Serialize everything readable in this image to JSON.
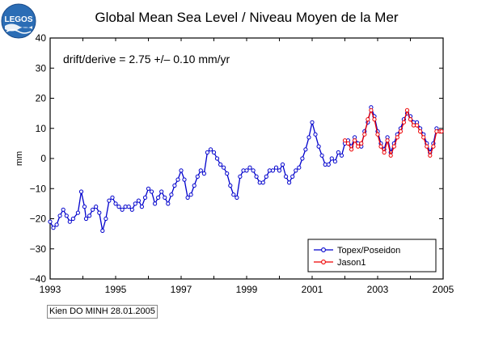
{
  "logo": {
    "text": "LEGOS"
  },
  "credit": "Kien DO MINH 28.01.2005",
  "chart_data": {
    "type": "line",
    "title": "Global Mean Sea Level / Niveau Moyen de la Mer",
    "annotation": "drift/derive = 2.75 +/– 0.10 mm/yr",
    "xlabel": "",
    "ylabel": "mm",
    "xlim": [
      1993,
      2005
    ],
    "ylim": [
      -40,
      40
    ],
    "x_ticks": [
      1993,
      1995,
      1997,
      1999,
      2001,
      2003,
      2005
    ],
    "y_ticks": [
      -40,
      -30,
      -20,
      -10,
      0,
      10,
      20,
      30,
      40
    ],
    "y_tick_labels": [
      "−40",
      "−30",
      "−20",
      "−10",
      "0",
      "10",
      "20",
      "30",
      "40"
    ],
    "grid": false,
    "legend_position": "bottom-right",
    "series": [
      {
        "name": "Topex/Poseidon",
        "color": "#0000cc",
        "marker": "circle",
        "points": [
          [
            1993.0,
            -21
          ],
          [
            1993.1,
            -23
          ],
          [
            1993.2,
            -22
          ],
          [
            1993.3,
            -19
          ],
          [
            1993.4,
            -17
          ],
          [
            1993.5,
            -19
          ],
          [
            1993.6,
            -21
          ],
          [
            1993.7,
            -20
          ],
          [
            1993.85,
            -18
          ],
          [
            1993.95,
            -11
          ],
          [
            1994.05,
            -16
          ],
          [
            1994.1,
            -20
          ],
          [
            1994.2,
            -19
          ],
          [
            1994.3,
            -17
          ],
          [
            1994.4,
            -16
          ],
          [
            1994.5,
            -18
          ],
          [
            1994.6,
            -24
          ],
          [
            1994.7,
            -20
          ],
          [
            1994.8,
            -14
          ],
          [
            1994.9,
            -13
          ],
          [
            1995.0,
            -15
          ],
          [
            1995.1,
            -16
          ],
          [
            1995.2,
            -17
          ],
          [
            1995.3,
            -16
          ],
          [
            1995.4,
            -16
          ],
          [
            1995.5,
            -17
          ],
          [
            1995.6,
            -15
          ],
          [
            1995.7,
            -14
          ],
          [
            1995.8,
            -16
          ],
          [
            1995.9,
            -13
          ],
          [
            1996.0,
            -10
          ],
          [
            1996.1,
            -11
          ],
          [
            1996.2,
            -15
          ],
          [
            1996.3,
            -13
          ],
          [
            1996.4,
            -11
          ],
          [
            1996.5,
            -13
          ],
          [
            1996.6,
            -15
          ],
          [
            1996.7,
            -12
          ],
          [
            1996.8,
            -9
          ],
          [
            1996.9,
            -7
          ],
          [
            1997.0,
            -4
          ],
          [
            1997.1,
            -7
          ],
          [
            1997.2,
            -13
          ],
          [
            1997.3,
            -12
          ],
          [
            1997.4,
            -9
          ],
          [
            1997.5,
            -6
          ],
          [
            1997.6,
            -4
          ],
          [
            1997.7,
            -5
          ],
          [
            1997.8,
            2
          ],
          [
            1997.9,
            3
          ],
          [
            1998.0,
            2
          ],
          [
            1998.1,
            0
          ],
          [
            1998.2,
            -2
          ],
          [
            1998.3,
            -3
          ],
          [
            1998.4,
            -5
          ],
          [
            1998.5,
            -9
          ],
          [
            1998.6,
            -12
          ],
          [
            1998.7,
            -13
          ],
          [
            1998.8,
            -6
          ],
          [
            1998.9,
            -4
          ],
          [
            1999.0,
            -4
          ],
          [
            1999.1,
            -3
          ],
          [
            1999.2,
            -4
          ],
          [
            1999.3,
            -6
          ],
          [
            1999.4,
            -8
          ],
          [
            1999.5,
            -8
          ],
          [
            1999.6,
            -6
          ],
          [
            1999.7,
            -4
          ],
          [
            1999.8,
            -4
          ],
          [
            1999.9,
            -3
          ],
          [
            2000.0,
            -4
          ],
          [
            2000.1,
            -2
          ],
          [
            2000.2,
            -6
          ],
          [
            2000.3,
            -8
          ],
          [
            2000.4,
            -6
          ],
          [
            2000.5,
            -4
          ],
          [
            2000.6,
            -3
          ],
          [
            2000.7,
            0
          ],
          [
            2000.8,
            3
          ],
          [
            2000.9,
            7
          ],
          [
            2001.0,
            12
          ],
          [
            2001.1,
            8
          ],
          [
            2001.2,
            4
          ],
          [
            2001.3,
            1
          ],
          [
            2001.4,
            -2
          ],
          [
            2001.5,
            -2
          ],
          [
            2001.6,
            0
          ],
          [
            2001.7,
            -1
          ],
          [
            2001.8,
            2
          ],
          [
            2001.9,
            1
          ],
          [
            2002.0,
            5
          ],
          [
            2002.1,
            6
          ],
          [
            2002.2,
            4
          ],
          [
            2002.3,
            7
          ],
          [
            2002.4,
            5
          ],
          [
            2002.5,
            4
          ],
          [
            2002.6,
            9
          ],
          [
            2002.7,
            12
          ],
          [
            2002.8,
            17
          ],
          [
            2002.9,
            14
          ],
          [
            2003.0,
            9
          ],
          [
            2003.1,
            5
          ],
          [
            2003.2,
            3
          ],
          [
            2003.3,
            7
          ],
          [
            2003.4,
            2
          ],
          [
            2003.5,
            5
          ],
          [
            2003.6,
            8
          ],
          [
            2003.7,
            10
          ],
          [
            2003.8,
            13
          ],
          [
            2003.9,
            15
          ],
          [
            2004.0,
            14
          ],
          [
            2004.1,
            12
          ],
          [
            2004.2,
            12
          ],
          [
            2004.3,
            10
          ],
          [
            2004.4,
            8
          ],
          [
            2004.5,
            5
          ],
          [
            2004.6,
            2
          ],
          [
            2004.7,
            5
          ],
          [
            2004.8,
            10
          ],
          [
            2004.9,
            9
          ],
          [
            2004.95,
            9
          ]
        ]
      },
      {
        "name": "Jason1",
        "color": "#ee0000",
        "marker": "circle",
        "points": [
          [
            2002.0,
            6
          ],
          [
            2002.1,
            5
          ],
          [
            2002.2,
            3
          ],
          [
            2002.3,
            6
          ],
          [
            2002.4,
            4
          ],
          [
            2002.5,
            5
          ],
          [
            2002.6,
            8
          ],
          [
            2002.7,
            13
          ],
          [
            2002.8,
            16
          ],
          [
            2002.9,
            13
          ],
          [
            2003.0,
            8
          ],
          [
            2003.1,
            4
          ],
          [
            2003.2,
            2
          ],
          [
            2003.3,
            6
          ],
          [
            2003.4,
            1
          ],
          [
            2003.5,
            4
          ],
          [
            2003.6,
            7
          ],
          [
            2003.7,
            9
          ],
          [
            2003.8,
            12
          ],
          [
            2003.9,
            16
          ],
          [
            2004.0,
            13
          ],
          [
            2004.1,
            11
          ],
          [
            2004.2,
            11
          ],
          [
            2004.3,
            9
          ],
          [
            2004.4,
            7
          ],
          [
            2004.5,
            4
          ],
          [
            2004.6,
            1
          ],
          [
            2004.7,
            4
          ],
          [
            2004.8,
            9
          ],
          [
            2004.9,
            9
          ],
          [
            2004.95,
            9
          ]
        ]
      }
    ]
  }
}
